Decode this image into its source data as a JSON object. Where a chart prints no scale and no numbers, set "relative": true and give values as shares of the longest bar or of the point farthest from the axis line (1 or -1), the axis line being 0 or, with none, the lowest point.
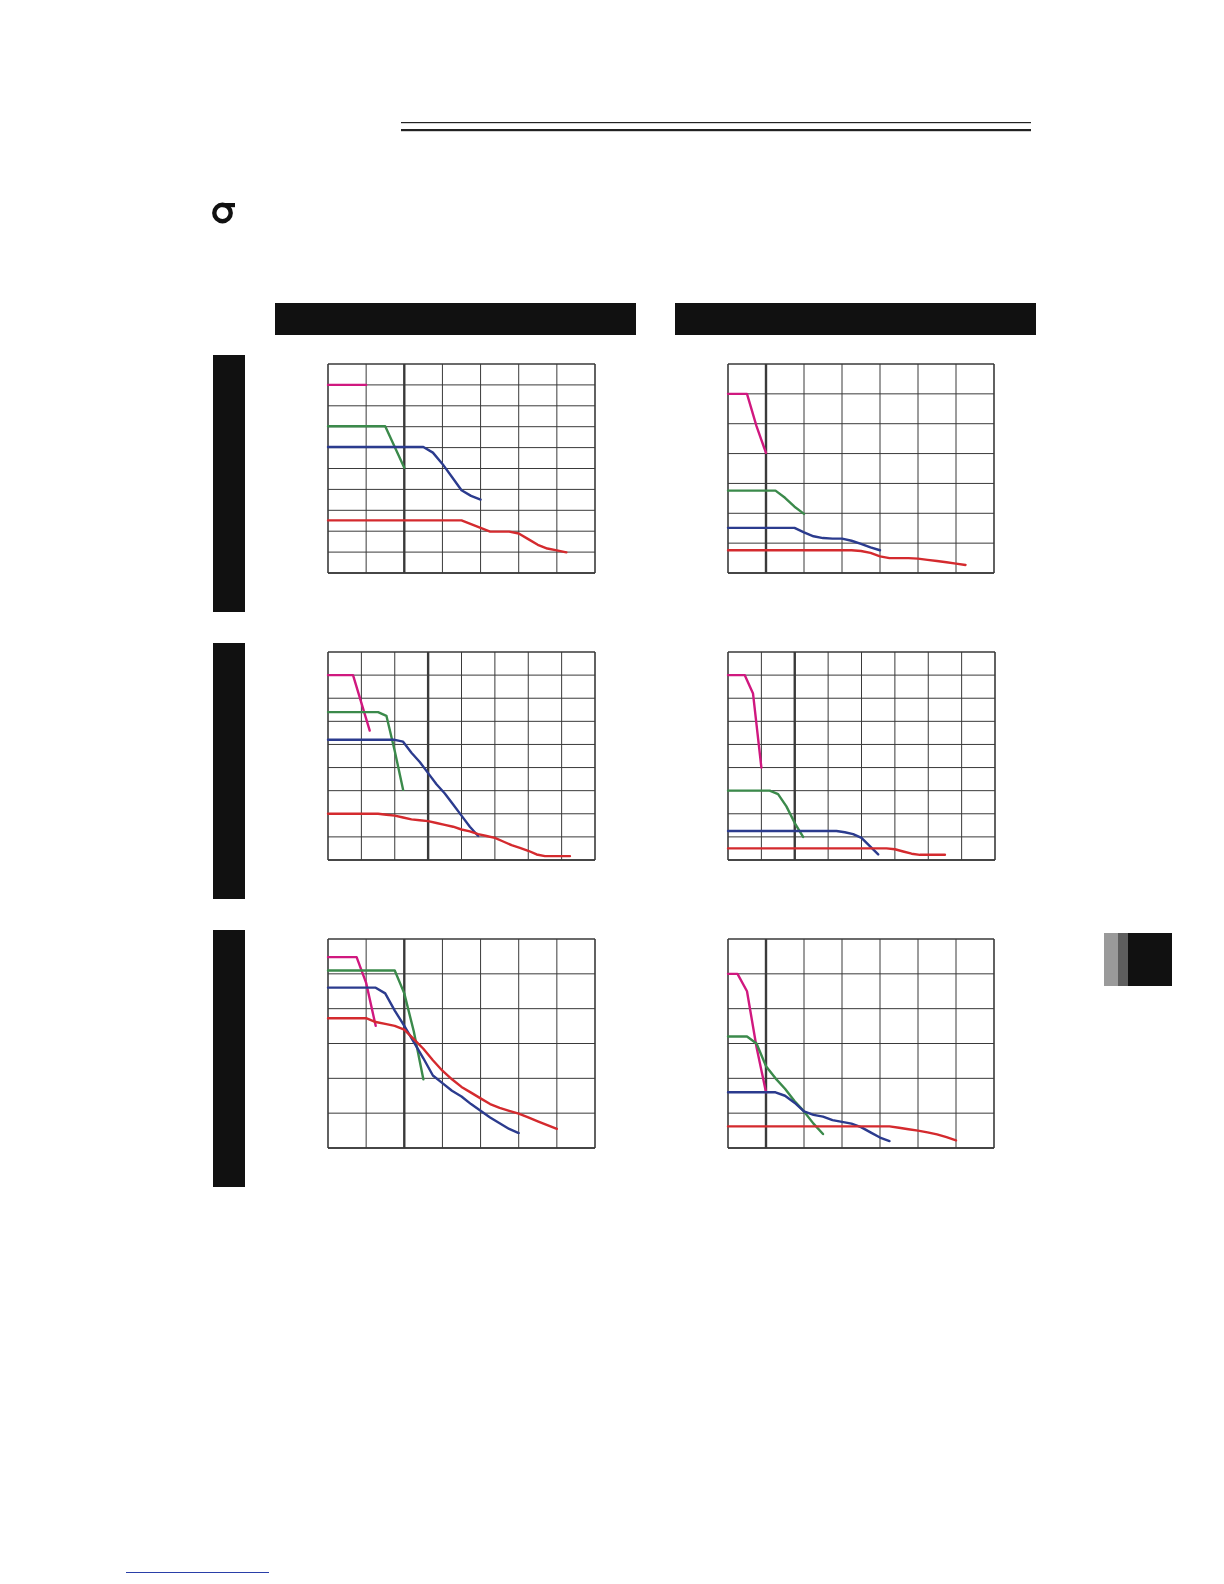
{
  "chart_data": [
    {
      "type": "line",
      "relative": true,
      "grid": true,
      "categories": [
        null,
        null,
        null,
        null,
        null,
        null,
        null,
        null,
        null,
        null,
        null,
        null,
        null,
        null,
        null,
        null,
        null,
        null,
        null,
        null,
        null,
        null,
        null,
        null,
        null,
        null,
        null,
        null,
        null
      ],
      "series": [
        {
          "color": "#d0187f",
          "values": [
            1,
            1,
            1,
            1,
            1,
            null,
            null,
            null,
            null,
            null,
            null,
            null,
            null,
            null,
            null,
            null,
            null,
            null,
            null,
            null,
            null,
            null,
            null,
            null,
            null,
            null,
            null,
            null,
            null
          ]
        },
        {
          "color": "#3b8a4b",
          "values": [
            0.78,
            0.78,
            0.78,
            0.78,
            0.78,
            0.78,
            0.78,
            0.67,
            0.56,
            null,
            null,
            null,
            null,
            null,
            null,
            null,
            null,
            null,
            null,
            null,
            null,
            null,
            null,
            null,
            null,
            null,
            null,
            null,
            null
          ]
        },
        {
          "color": "#2b3b8e",
          "values": [
            0.67,
            0.67,
            0.67,
            0.67,
            0.67,
            0.67,
            0.67,
            0.67,
            0.67,
            0.67,
            0.67,
            0.64,
            0.58,
            0.51,
            0.44,
            0.41,
            0.39,
            null,
            null,
            null,
            null,
            null,
            null,
            null,
            null,
            null,
            null,
            null,
            null
          ]
        },
        {
          "color": "#d42a2e",
          "values": [
            0.28,
            0.28,
            0.28,
            0.28,
            0.28,
            0.28,
            0.28,
            0.28,
            0.28,
            0.28,
            0.28,
            0.28,
            0.28,
            0.28,
            0.28,
            0.26,
            0.24,
            0.22,
            0.22,
            0.22,
            0.21,
            0.18,
            0.15,
            0.13,
            0.12,
            0.11,
            null,
            null,
            null
          ]
        }
      ]
    },
    {
      "type": "line",
      "relative": true,
      "grid": true,
      "categories": [
        null,
        null,
        null,
        null,
        null,
        null,
        null,
        null,
        null,
        null,
        null,
        null,
        null,
        null,
        null,
        null,
        null,
        null,
        null,
        null,
        null,
        null,
        null,
        null,
        null,
        null,
        null,
        null,
        null
      ],
      "series": [
        {
          "color": "#d0187f",
          "values": [
            1,
            1,
            1,
            0.82,
            0.67,
            null,
            null,
            null,
            null,
            null,
            null,
            null,
            null,
            null,
            null,
            null,
            null,
            null,
            null,
            null,
            null,
            null,
            null,
            null,
            null,
            null,
            null,
            null,
            null
          ]
        },
        {
          "color": "#3b8a4b",
          "values": [
            0.46,
            0.46,
            0.46,
            0.46,
            0.46,
            0.46,
            0.42,
            0.37,
            0.33,
            null,
            null,
            null,
            null,
            null,
            null,
            null,
            null,
            null,
            null,
            null,
            null,
            null,
            null,
            null,
            null,
            null,
            null,
            null,
            null
          ]
        },
        {
          "color": "#2b3b8e",
          "values": [
            0.252,
            0.252,
            0.252,
            0.252,
            0.252,
            0.252,
            0.252,
            0.252,
            0.227,
            0.205,
            0.195,
            0.192,
            0.192,
            0.18,
            0.163,
            0.143,
            0.127,
            null,
            null,
            null,
            null,
            null,
            null,
            null,
            null,
            null,
            null,
            null,
            null
          ]
        },
        {
          "color": "#d42a2e",
          "values": [
            0.127,
            0.127,
            0.127,
            0.127,
            0.127,
            0.127,
            0.127,
            0.127,
            0.127,
            0.127,
            0.127,
            0.127,
            0.127,
            0.127,
            0.123,
            0.112,
            0.093,
            0.083,
            0.083,
            0.083,
            0.08,
            0.073,
            0.067,
            0.06,
            0.052,
            0.045,
            null,
            null,
            null
          ]
        }
      ]
    },
    {
      "type": "line",
      "relative": true,
      "grid": true,
      "categories": [
        null,
        null,
        null,
        null,
        null,
        null,
        null,
        null,
        null,
        null,
        null,
        null,
        null,
        null,
        null,
        null,
        null,
        null,
        null,
        null,
        null,
        null,
        null,
        null,
        null,
        null,
        null,
        null,
        null,
        null,
        null,
        null,
        null
      ],
      "series": [
        {
          "color": "#d0187f",
          "values": [
            1,
            1,
            1,
            1,
            0.85,
            0.7,
            null,
            null,
            null,
            null,
            null,
            null,
            null,
            null,
            null,
            null,
            null,
            null,
            null,
            null,
            null,
            null,
            null,
            null,
            null,
            null,
            null,
            null,
            null,
            null,
            null,
            null,
            null
          ]
        },
        {
          "color": "#3b8a4b",
          "values": [
            0.8,
            0.8,
            0.8,
            0.8,
            0.8,
            0.8,
            0.8,
            0.78,
            0.59,
            0.38,
            null,
            null,
            null,
            null,
            null,
            null,
            null,
            null,
            null,
            null,
            null,
            null,
            null,
            null,
            null,
            null,
            null,
            null,
            null,
            null,
            null,
            null,
            null
          ]
        },
        {
          "color": "#2b3b8e",
          "values": [
            0.65,
            0.65,
            0.65,
            0.65,
            0.65,
            0.65,
            0.65,
            0.65,
            0.65,
            0.64,
            0.58,
            0.53,
            0.47,
            0.41,
            0.36,
            0.3,
            0.24,
            0.18,
            0.13,
            null,
            null,
            null,
            null,
            null,
            null,
            null,
            null,
            null,
            null,
            null,
            null,
            null,
            null
          ]
        },
        {
          "color": "#d42a2e",
          "values": [
            0.25,
            0.25,
            0.25,
            0.25,
            0.25,
            0.25,
            0.25,
            0.245,
            0.24,
            0.23,
            0.22,
            0.215,
            0.21,
            0.2,
            0.19,
            0.18,
            0.165,
            0.155,
            0.14,
            0.13,
            0.12,
            0.1,
            0.08,
            0.066,
            0.05,
            0.03,
            0.021,
            0.021,
            0.021,
            0.021,
            null,
            null,
            null
          ]
        }
      ]
    },
    {
      "type": "line",
      "relative": true,
      "grid": true,
      "categories": [
        null,
        null,
        null,
        null,
        null,
        null,
        null,
        null,
        null,
        null,
        null,
        null,
        null,
        null,
        null,
        null,
        null,
        null,
        null,
        null,
        null,
        null,
        null,
        null,
        null,
        null,
        null,
        null,
        null,
        null,
        null,
        null,
        null
      ],
      "series": [
        {
          "color": "#d0187f",
          "values": [
            1,
            1,
            1,
            0.9,
            0.5,
            null,
            null,
            null,
            null,
            null,
            null,
            null,
            null,
            null,
            null,
            null,
            null,
            null,
            null,
            null,
            null,
            null,
            null,
            null,
            null,
            null,
            null,
            null,
            null,
            null,
            null,
            null,
            null
          ]
        },
        {
          "color": "#3b8a4b",
          "values": [
            0.375,
            0.375,
            0.375,
            0.375,
            0.375,
            0.375,
            0.356,
            0.29,
            0.2,
            0.125,
            null,
            null,
            null,
            null,
            null,
            null,
            null,
            null,
            null,
            null,
            null,
            null,
            null,
            null,
            null,
            null,
            null,
            null,
            null,
            null,
            null,
            null,
            null
          ]
        },
        {
          "color": "#2b3b8e",
          "values": [
            0.157,
            0.157,
            0.157,
            0.157,
            0.157,
            0.157,
            0.157,
            0.157,
            0.157,
            0.157,
            0.157,
            0.157,
            0.157,
            0.157,
            0.15,
            0.14,
            0.12,
            0.075,
            0.03,
            null,
            null,
            null,
            null,
            null,
            null,
            null,
            null,
            null,
            null,
            null,
            null,
            null,
            null
          ]
        },
        {
          "color": "#d42a2e",
          "values": [
            0.063,
            0.063,
            0.063,
            0.063,
            0.063,
            0.063,
            0.063,
            0.063,
            0.063,
            0.063,
            0.063,
            0.063,
            0.063,
            0.063,
            0.063,
            0.063,
            0.063,
            0.063,
            0.063,
            0.063,
            0.058,
            0.046,
            0.034,
            0.028,
            0.028,
            0.028,
            0.028,
            null,
            null,
            null,
            null,
            null,
            null
          ]
        }
      ]
    },
    {
      "type": "line",
      "relative": true,
      "grid": true,
      "categories": [
        null,
        null,
        null,
        null,
        null,
        null,
        null,
        null,
        null,
        null,
        null,
        null,
        null,
        null,
        null,
        null,
        null,
        null,
        null,
        null,
        null,
        null,
        null,
        null,
        null,
        null,
        null,
        null,
        null
      ],
      "series": [
        {
          "color": "#d0187f",
          "values": [
            1,
            1,
            1,
            1,
            0.865,
            0.64,
            null,
            null,
            null,
            null,
            null,
            null,
            null,
            null,
            null,
            null,
            null,
            null,
            null,
            null,
            null,
            null,
            null,
            null,
            null,
            null,
            null,
            null,
            null
          ]
        },
        {
          "color": "#3b8a4b",
          "values": [
            0.93,
            0.93,
            0.93,
            0.93,
            0.93,
            0.93,
            0.93,
            0.93,
            0.81,
            0.61,
            0.36,
            null,
            null,
            null,
            null,
            null,
            null,
            null,
            null,
            null,
            null,
            null,
            null,
            null,
            null,
            null,
            null,
            null,
            null
          ]
        },
        {
          "color": "#2b3b8e",
          "values": [
            0.84,
            0.84,
            0.84,
            0.84,
            0.84,
            0.84,
            0.81,
            0.72,
            0.64,
            0.555,
            0.47,
            0.38,
            0.34,
            0.3,
            0.27,
            0.23,
            0.195,
            0.16,
            0.13,
            0.1,
            0.078,
            null,
            null,
            null,
            null,
            null,
            null,
            null,
            null
          ]
        },
        {
          "color": "#d42a2e",
          "values": [
            0.68,
            0.68,
            0.68,
            0.68,
            0.68,
            0.66,
            0.65,
            0.64,
            0.62,
            0.57,
            0.52,
            0.46,
            0.405,
            0.36,
            0.32,
            0.29,
            0.26,
            0.23,
            0.21,
            0.195,
            0.18,
            0.16,
            0.14,
            0.12,
            0.1,
            null,
            null,
            null,
            null
          ]
        }
      ]
    },
    {
      "type": "line",
      "relative": true,
      "grid": true,
      "categories": [
        null,
        null,
        null,
        null,
        null,
        null,
        null,
        null,
        null,
        null,
        null,
        null,
        null,
        null,
        null,
        null,
        null,
        null,
        null,
        null,
        null,
        null,
        null,
        null,
        null,
        null,
        null,
        null,
        null
      ],
      "series": [
        {
          "color": "#d0187f",
          "values": [
            1,
            1,
            0.9,
            0.58,
            0.32,
            null,
            null,
            null,
            null,
            null,
            null,
            null,
            null,
            null,
            null,
            null,
            null,
            null,
            null,
            null,
            null,
            null,
            null,
            null,
            null,
            null,
            null,
            null,
            null
          ]
        },
        {
          "color": "#3b8a4b",
          "values": [
            0.64,
            0.64,
            0.64,
            0.6,
            0.47,
            0.4,
            0.34,
            0.27,
            0.21,
            0.14,
            0.08,
            null,
            null,
            null,
            null,
            null,
            null,
            null,
            null,
            null,
            null,
            null,
            null,
            null,
            null,
            null,
            null,
            null,
            null
          ]
        },
        {
          "color": "#2b3b8e",
          "values": [
            0.32,
            0.32,
            0.32,
            0.32,
            0.32,
            0.32,
            0.3,
            0.26,
            0.21,
            0.19,
            0.18,
            0.16,
            0.15,
            0.14,
            0.12,
            0.09,
            0.06,
            0.04,
            null,
            null,
            null,
            null,
            null,
            null,
            null,
            null,
            null,
            null,
            null
          ]
        },
        {
          "color": "#d42a2e",
          "values": [
            0.124,
            0.124,
            0.124,
            0.124,
            0.124,
            0.124,
            0.124,
            0.124,
            0.124,
            0.124,
            0.124,
            0.124,
            0.124,
            0.124,
            0.124,
            0.124,
            0.124,
            0.124,
            0.116,
            0.108,
            0.1,
            0.09,
            0.078,
            0.062,
            0.044,
            null,
            null,
            null,
            null
          ]
        }
      ]
    }
  ]
}
